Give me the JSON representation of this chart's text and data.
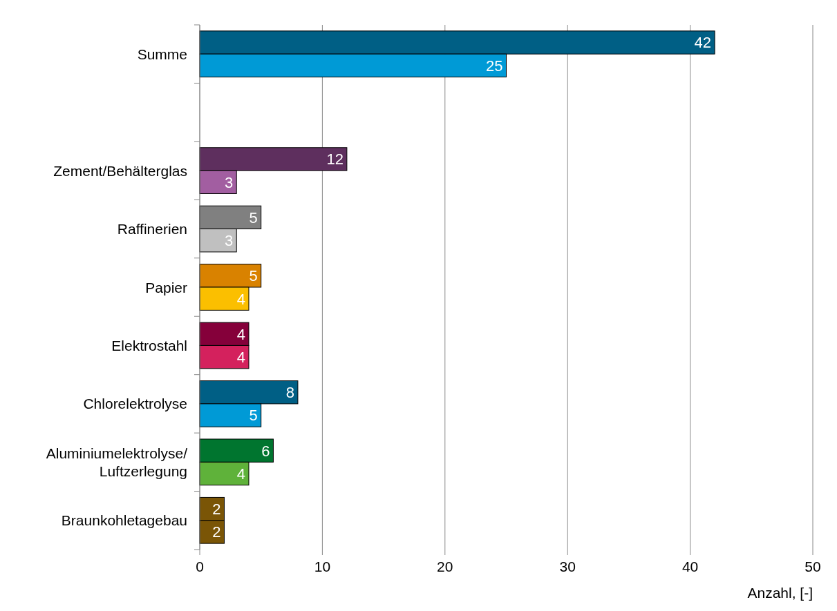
{
  "chart_data": {
    "type": "bar",
    "orientation": "horizontal",
    "categories": [
      "Summe",
      null,
      "Zement/Behälterglas",
      "Raffinerien",
      "Papier",
      "Elektrostahl",
      "Chlorelektrolyse",
      "Aluminiumelektrolyse/\nLuftzerlegung",
      "Braunkohletagebau"
    ],
    "series": [
      {
        "values": [
          42,
          null,
          12,
          5,
          5,
          4,
          8,
          6,
          2
        ],
        "colors": [
          "#005f85",
          null,
          "#5e2f5e",
          "#808080",
          "#d98200",
          "#85003a",
          "#005f85",
          "#00752f",
          "#7a5506"
        ]
      },
      {
        "values": [
          25,
          null,
          3,
          3,
          4,
          4,
          5,
          4,
          2
        ],
        "colors": [
          "#009ad6",
          null,
          "#a25ea1",
          "#c0c0c0",
          "#fbbf00",
          "#d4215d",
          "#009ad6",
          "#5fb23a",
          "#7a5506"
        ]
      }
    ],
    "xlim": [
      0,
      50
    ],
    "xticks": [
      0,
      10,
      20,
      30,
      40,
      50
    ],
    "xlabel": "Anzahl, [-]",
    "grid": "x",
    "data_labels": true
  }
}
